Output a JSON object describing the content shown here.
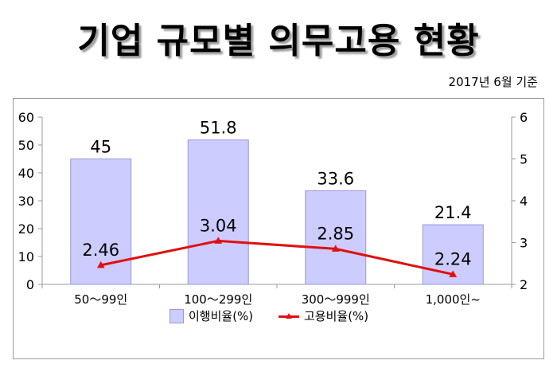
{
  "title": "기업 규모별 의무고용 현황",
  "subtitle": "2017년 6월 기준",
  "legend": {
    "bar_label": "이행비율(%)",
    "line_label": "고용비율(%)"
  },
  "colors": {
    "bar_fill": "#ccccff",
    "bar_stroke": "#9999dd",
    "line": "#e01010",
    "axis": "#9a9a9a"
  },
  "chart_data": {
    "type": "bar",
    "categories": [
      "50～99인",
      "100～299인",
      "300～999인",
      "1,000인~"
    ],
    "series": [
      {
        "name": "이행비율(%)",
        "type": "bar",
        "axis": "left",
        "values": [
          45,
          51.8,
          33.6,
          21.4
        ],
        "labels": [
          "45",
          "51.8",
          "33.6",
          "21.4"
        ]
      },
      {
        "name": "고용비율(%)",
        "type": "line",
        "axis": "right",
        "values": [
          2.46,
          3.04,
          2.85,
          2.24
        ],
        "labels": [
          "2.46",
          "3.04",
          "2.85",
          "2.24"
        ]
      }
    ],
    "y_left": {
      "min": 0,
      "max": 60,
      "ticks": [
        "0",
        "10",
        "20",
        "30",
        "40",
        "50",
        "60"
      ]
    },
    "y_right": {
      "min": 2,
      "max": 6,
      "ticks": [
        "2",
        "3",
        "4",
        "5",
        "6"
      ]
    },
    "grid": false,
    "legend_position": "bottom"
  }
}
